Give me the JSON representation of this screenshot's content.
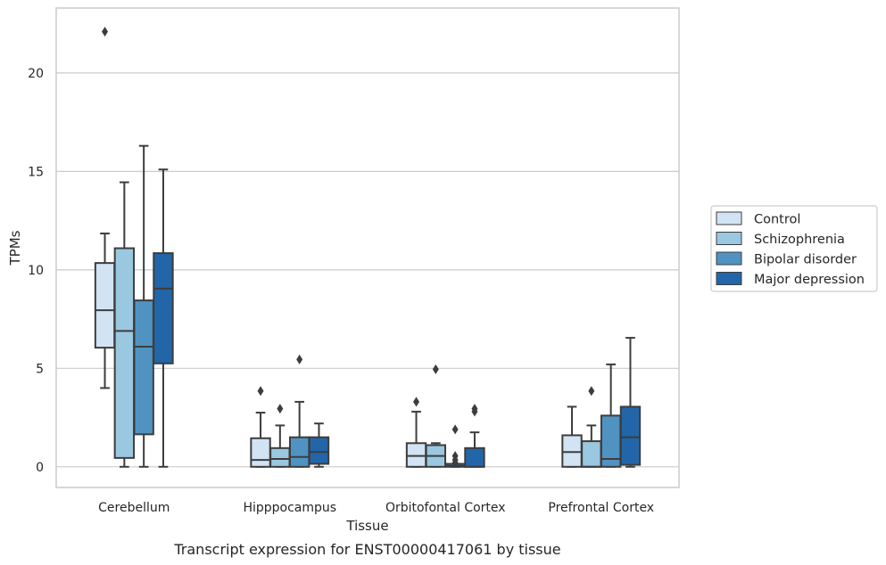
{
  "chart_data": {
    "type": "box",
    "xlabel": "Tissue",
    "ylabel": "TPMs",
    "caption": "Transcript expression for ENST00000417061 by tissue",
    "ylim": [
      -1.05,
      23.3
    ],
    "yticks": [
      0,
      5,
      10,
      15,
      20
    ],
    "grid": "horizontal",
    "legend_position": "right",
    "categories": [
      "Cerebellum",
      "Hipppocampus",
      "Orbitofontal Cortex",
      "Prefrontal Cortex"
    ],
    "series": [
      {
        "name": "Control",
        "color": "#d2e3f3",
        "boxes": [
          {
            "whislo": 4.0,
            "q1": 6.05,
            "med": 7.95,
            "q3": 10.35,
            "whishi": 11.85,
            "fliers": [
              22.1
            ]
          },
          {
            "whislo": 0.0,
            "q1": 0.0,
            "med": 0.35,
            "q3": 1.45,
            "whishi": 2.75,
            "fliers": [
              3.85
            ]
          },
          {
            "whislo": 0.0,
            "q1": 0.0,
            "med": 0.55,
            "q3": 1.2,
            "whishi": 2.8,
            "fliers": [
              3.3
            ]
          },
          {
            "whislo": 0.0,
            "q1": 0.0,
            "med": 0.75,
            "q3": 1.6,
            "whishi": 3.05,
            "fliers": []
          }
        ]
      },
      {
        "name": "Schizophrenia",
        "color": "#9ac8e1",
        "boxes": [
          {
            "whislo": 0.0,
            "q1": 0.45,
            "med": 6.9,
            "q3": 11.1,
            "whishi": 14.45,
            "fliers": []
          },
          {
            "whislo": 0.0,
            "q1": 0.0,
            "med": 0.4,
            "q3": 0.95,
            "whishi": 2.1,
            "fliers": [
              2.95
            ]
          },
          {
            "whislo": 0.0,
            "q1": 0.0,
            "med": 0.55,
            "q3": 1.1,
            "whishi": 1.2,
            "fliers": [
              4.95
            ]
          },
          {
            "whislo": 0.0,
            "q1": 0.0,
            "med": 0.0,
            "q3": 1.3,
            "whishi": 2.1,
            "fliers": [
              3.85
            ]
          }
        ]
      },
      {
        "name": "Bipolar disorder",
        "color": "#5093c2",
        "boxes": [
          {
            "whislo": 0.0,
            "q1": 1.65,
            "med": 6.1,
            "q3": 8.45,
            "whishi": 16.3,
            "fliers": []
          },
          {
            "whislo": 0.0,
            "q1": 0.0,
            "med": 0.5,
            "q3": 1.5,
            "whishi": 3.3,
            "fliers": [
              5.45
            ]
          },
          {
            "whislo": 0.0,
            "q1": 0.0,
            "med": 0.05,
            "q3": 0.15,
            "whishi": 0.15,
            "fliers": [
              0.2,
              0.35,
              0.55,
              1.9
            ]
          },
          {
            "whislo": 0.0,
            "q1": 0.0,
            "med": 0.4,
            "q3": 2.6,
            "whishi": 5.2,
            "fliers": []
          }
        ]
      },
      {
        "name": "Major depression",
        "color": "#2266a9",
        "boxes": [
          {
            "whislo": 0.0,
            "q1": 5.25,
            "med": 9.05,
            "q3": 10.85,
            "whishi": 15.1,
            "fliers": []
          },
          {
            "whislo": 0.0,
            "q1": 0.15,
            "med": 0.75,
            "q3": 1.5,
            "whishi": 2.2,
            "fliers": []
          },
          {
            "whislo": 0.0,
            "q1": 0.0,
            "med": 0.0,
            "q3": 0.95,
            "whishi": 1.75,
            "fliers": [
              2.8,
              2.95
            ]
          },
          {
            "whislo": 0.0,
            "q1": 0.1,
            "med": 1.5,
            "q3": 3.05,
            "whishi": 6.55,
            "fliers": []
          }
        ]
      }
    ]
  }
}
